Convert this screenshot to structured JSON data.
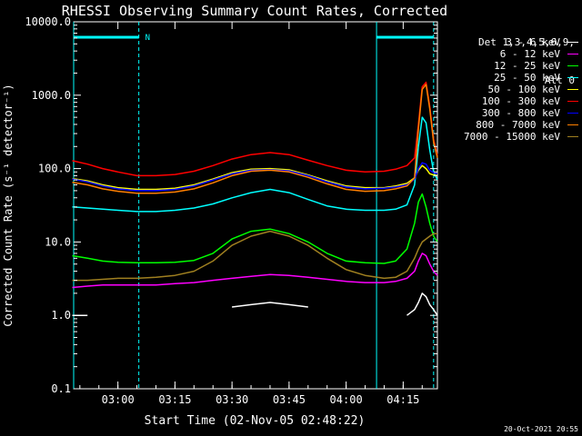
{
  "chart_data": {
    "type": "line",
    "title": "RHESSI Observing Summary Count Rates, Corrected",
    "xlabel": "Start Time (02-Nov-05 02:48:22)",
    "ylabel": "Corrected Count Rate (s⁻¹ detector⁻¹)",
    "y_scale": "log",
    "ylim": [
      0.1,
      10000
    ],
    "y_ticks": [
      "0.1",
      "1.0",
      "10.0",
      "100.0",
      "1000.0",
      "10000.0"
    ],
    "x_ticks": [
      "03:00",
      "03:15",
      "03:30",
      "03:45",
      "04:00",
      "04:15"
    ],
    "xlim": [
      "02:48:22",
      "04:24:00"
    ],
    "legend_header": [
      "Det 1,3,4,5,6,9,",
      "Att 0"
    ],
    "legend_position": "top-right",
    "night_label": "N",
    "night_intervals": [
      [
        "02:48:22",
        "03:05:30"
      ],
      [
        "04:08:00",
        "04:23:00"
      ]
    ],
    "x": [
      "02:48",
      "02:52",
      "02:56",
      "03:00",
      "03:05",
      "03:10",
      "03:15",
      "03:20",
      "03:25",
      "03:30",
      "03:35",
      "03:40",
      "03:45",
      "03:50",
      "03:55",
      "04:00",
      "04:05",
      "04:10",
      "04:13",
      "04:16",
      "04:18",
      "04:19",
      "04:20",
      "04:21",
      "04:22",
      "04:23",
      "04:24"
    ],
    "series": [
      {
        "name": "3 - 6 keV",
        "color": "#ffffff",
        "values": [
          1.0,
          1.0,
          null,
          null,
          null,
          null,
          null,
          null,
          null,
          1.3,
          1.4,
          1.5,
          1.4,
          1.3,
          null,
          null,
          null,
          null,
          null,
          1.0,
          1.2,
          1.5,
          2.0,
          1.8,
          1.4,
          1.2,
          1.0
        ]
      },
      {
        "name": "6 - 12 keV",
        "color": "#ff00ff",
        "values": [
          2.4,
          2.5,
          2.6,
          2.6,
          2.6,
          2.6,
          2.7,
          2.8,
          3.0,
          3.2,
          3.4,
          3.6,
          3.5,
          3.3,
          3.1,
          2.9,
          2.8,
          2.8,
          2.9,
          3.2,
          4.0,
          5.5,
          7.0,
          6.5,
          5.0,
          4.0,
          3.5
        ]
      },
      {
        "name": "12 - 25 keV",
        "color": "#00ff00",
        "values": [
          6.5,
          6.0,
          5.5,
          5.3,
          5.2,
          5.2,
          5.3,
          5.6,
          7.0,
          11,
          14,
          15,
          13,
          10,
          7,
          5.5,
          5.2,
          5.1,
          5.5,
          8,
          18,
          35,
          45,
          30,
          18,
          12,
          10
        ]
      },
      {
        "name": "25 - 50 keV",
        "color": "#00ffff",
        "values": [
          30,
          29,
          28,
          27,
          26,
          26,
          27,
          29,
          33,
          40,
          47,
          52,
          47,
          38,
          31,
          28,
          27,
          27,
          28,
          32,
          60,
          200,
          500,
          420,
          180,
          90,
          70
        ]
      },
      {
        "name": "50 - 100 keV",
        "color": "#ffff00",
        "values": [
          73,
          68,
          60,
          55,
          52,
          52,
          54,
          60,
          72,
          88,
          98,
          100,
          96,
          82,
          68,
          58,
          55,
          55,
          58,
          63,
          75,
          95,
          110,
          100,
          85,
          82,
          80
        ]
      },
      {
        "name": "100 - 300 keV",
        "color": "#ff0000",
        "values": [
          128,
          115,
          100,
          90,
          80,
          80,
          83,
          92,
          110,
          135,
          155,
          165,
          155,
          130,
          110,
          95,
          90,
          92,
          98,
          110,
          140,
          400,
          1300,
          1500,
          700,
          250,
          150
        ]
      },
      {
        "name": "300 - 800 keV",
        "color": "#0000ff",
        "values": [
          72,
          66,
          58,
          53,
          50,
          50,
          52,
          58,
          70,
          85,
          95,
          97,
          93,
          80,
          66,
          56,
          53,
          54,
          56,
          60,
          72,
          100,
          120,
          115,
          95,
          88,
          85
        ]
      },
      {
        "name": "800 - 7000 keV",
        "color": "#ff8000",
        "values": [
          65,
          60,
          53,
          49,
          46,
          46,
          48,
          53,
          64,
          80,
          92,
          95,
          90,
          76,
          62,
          52,
          49,
          50,
          53,
          58,
          75,
          350,
          1200,
          1400,
          650,
          230,
          140
        ]
      },
      {
        "name": "7000 - 15000 keV",
        "color": "#a08020",
        "values": [
          3.0,
          3.0,
          3.1,
          3.2,
          3.2,
          3.3,
          3.5,
          4.0,
          5.5,
          9,
          12,
          14,
          12,
          9,
          6,
          4.2,
          3.5,
          3.2,
          3.3,
          4.0,
          6.0,
          8.0,
          10,
          11,
          12,
          13,
          13
        ]
      }
    ]
  },
  "footer": {
    "timestamp": "20-Oct-2021 20:55"
  }
}
